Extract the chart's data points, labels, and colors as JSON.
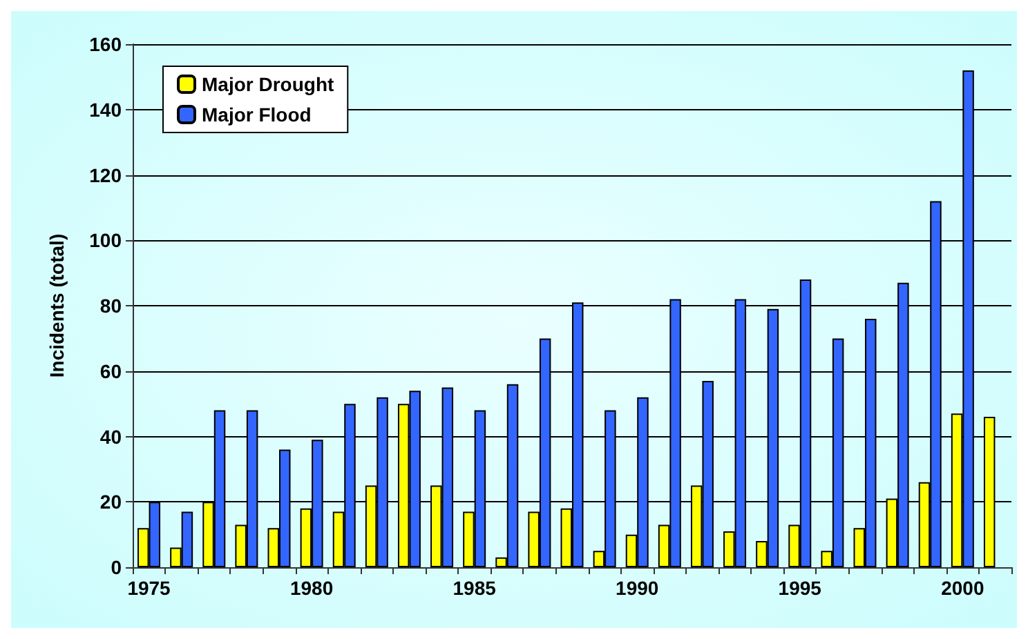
{
  "chart_data": {
    "type": "bar",
    "ylabel": "Incidents (total)",
    "categories": [
      "1975",
      null,
      null,
      null,
      null,
      "1980",
      null,
      null,
      null,
      null,
      "1985",
      null,
      null,
      null,
      null,
      "1990",
      null,
      null,
      null,
      null,
      "1995",
      null,
      null,
      null,
      null,
      "2000",
      null
    ],
    "series": [
      {
        "name": "Major Drought",
        "color": "#ffff00",
        "values": [
          12,
          6,
          20,
          13,
          12,
          18,
          17,
          25,
          50,
          25,
          17,
          3,
          17,
          18,
          5,
          10,
          13,
          25,
          11,
          8,
          13,
          5,
          12,
          21,
          26,
          47,
          46
        ]
      },
      {
        "name": "Major Flood",
        "color": "#3366ff",
        "values": [
          20,
          17,
          48,
          48,
          36,
          39,
          50,
          52,
          54,
          55,
          48,
          56,
          70,
          81,
          48,
          52,
          82,
          57,
          82,
          79,
          88,
          70,
          76,
          87,
          112,
          152,
          null
        ]
      }
    ],
    "ylim": [
      0,
      160
    ],
    "yticks": [
      0,
      20,
      40,
      60,
      80,
      100,
      120,
      140,
      160
    ],
    "grid": "y",
    "legend": "top left"
  }
}
